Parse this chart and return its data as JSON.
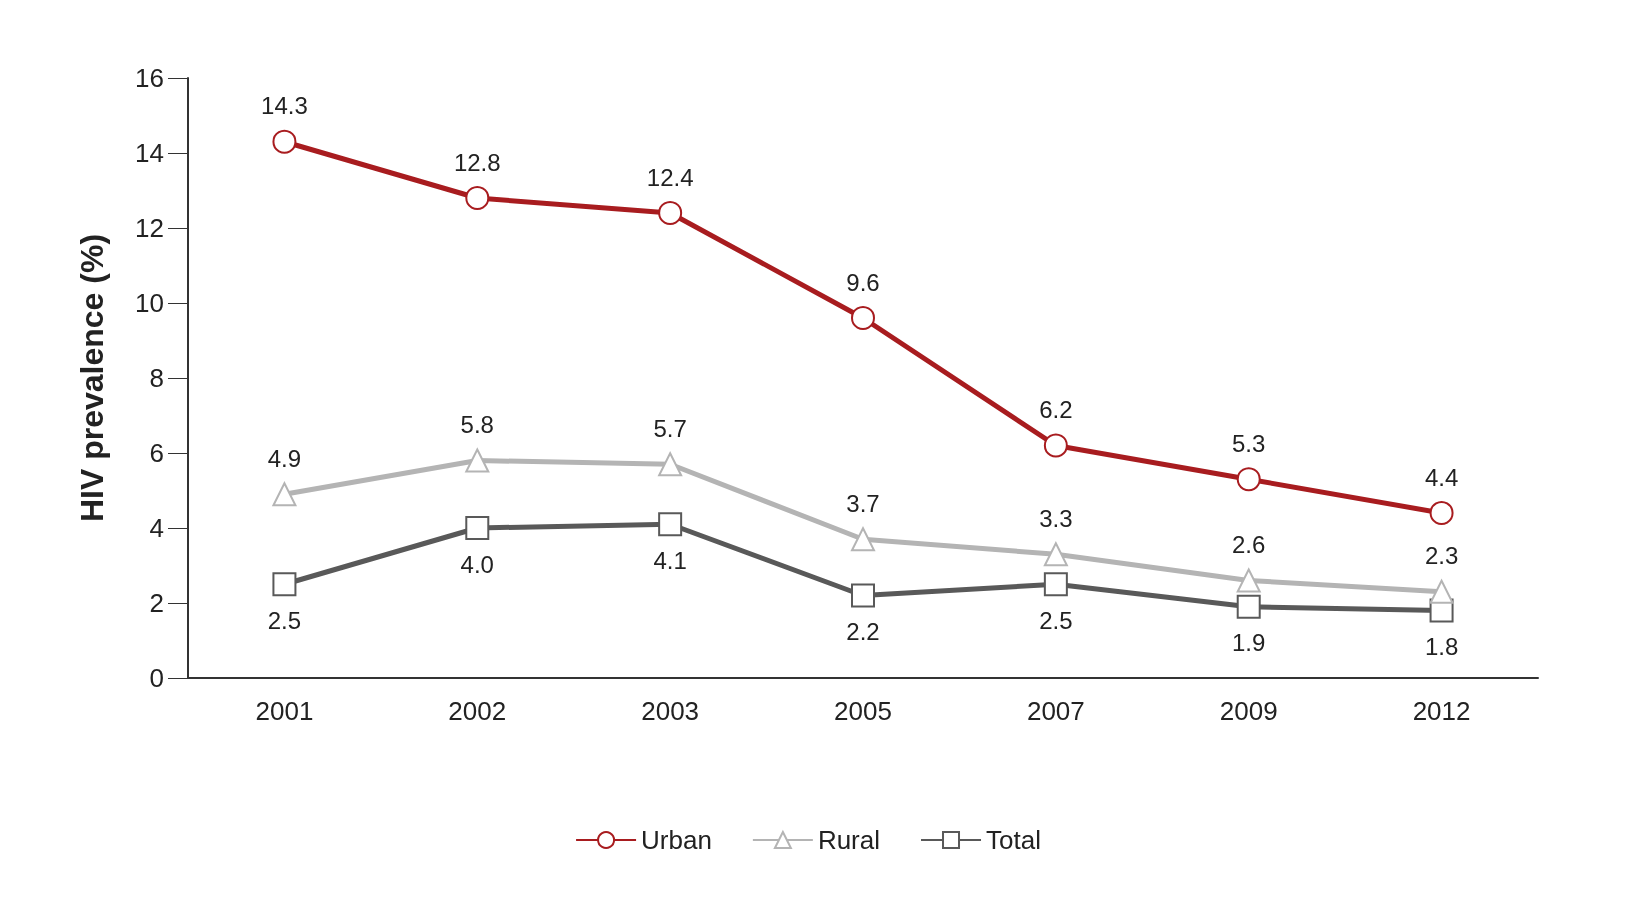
{
  "chart_data": {
    "type": "line",
    "ylabel": "HIV prevalence (%)",
    "categories": [
      "2001",
      "2002",
      "2003",
      "2005",
      "2007",
      "2009",
      "2012"
    ],
    "series": [
      {
        "name": "Urban",
        "color": "#a81c1f",
        "marker": "circle",
        "values": [
          14.3,
          12.8,
          12.4,
          9.6,
          6.2,
          5.3,
          4.4
        ]
      },
      {
        "name": "Rural",
        "color": "#b4b4b4",
        "marker": "triangle",
        "values": [
          4.9,
          5.8,
          5.7,
          3.7,
          3.3,
          2.6,
          2.3
        ]
      },
      {
        "name": "Total",
        "color": "#595959",
        "marker": "square",
        "values": [
          2.5,
          4.0,
          4.1,
          2.2,
          2.5,
          1.9,
          1.8
        ],
        "value_labels": [
          "2.5",
          "4.0",
          "4.1",
          "2.2",
          "2.5",
          "1.9",
          "1.8"
        ]
      }
    ],
    "ylim": [
      0,
      16
    ],
    "yticks": [
      0,
      2,
      4,
      6,
      8,
      10,
      12,
      14,
      16
    ],
    "grid": false,
    "legend": "bottom",
    "data_labels": true,
    "line_style": "solid"
  }
}
